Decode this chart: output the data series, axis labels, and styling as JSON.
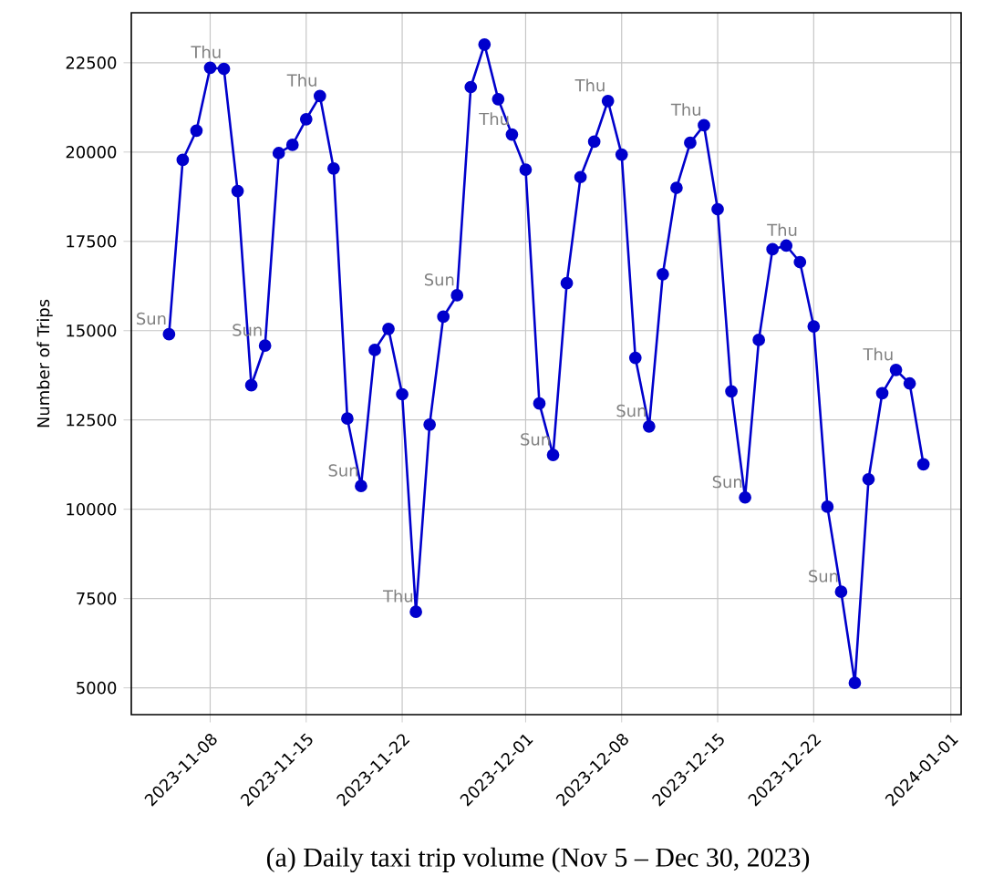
{
  "chart_data": {
    "type": "line",
    "title": "(a) Daily taxi trip volume (Nov 5 – Dec 30, 2023)",
    "ylabel": "Number of Trips",
    "x": [
      "2023-11-05",
      "2023-11-06",
      "2023-11-07",
      "2023-11-08",
      "2023-11-09",
      "2023-11-10",
      "2023-11-11",
      "2023-11-12",
      "2023-11-13",
      "2023-11-14",
      "2023-11-15",
      "2023-11-16",
      "2023-11-17",
      "2023-11-18",
      "2023-11-19",
      "2023-11-20",
      "2023-11-21",
      "2023-11-22",
      "2023-11-23",
      "2023-11-24",
      "2023-11-25",
      "2023-11-26",
      "2023-11-27",
      "2023-11-28",
      "2023-11-29",
      "2023-11-30",
      "2023-12-01",
      "2023-12-02",
      "2023-12-03",
      "2023-12-04",
      "2023-12-05",
      "2023-12-06",
      "2023-12-07",
      "2023-12-08",
      "2023-12-09",
      "2023-12-10",
      "2023-12-11",
      "2023-12-12",
      "2023-12-13",
      "2023-12-14",
      "2023-12-15",
      "2023-12-16",
      "2023-12-17",
      "2023-12-18",
      "2023-12-19",
      "2023-12-20",
      "2023-12-21",
      "2023-12-22",
      "2023-12-23",
      "2023-12-24",
      "2023-12-25",
      "2023-12-26",
      "2023-12-27",
      "2023-12-28",
      "2023-12-29",
      "2023-12-30"
    ],
    "series": [
      {
        "color": "#0000cc",
        "values": [
          14900,
          19780,
          20600,
          22360,
          22330,
          18910,
          13470,
          14580,
          19970,
          20200,
          20920,
          21570,
          19540,
          12540,
          10650,
          14460,
          15050,
          13220,
          7130,
          12370,
          15390,
          15990,
          21820,
          23010,
          21480,
          20490,
          19510,
          12960,
          11520,
          16330,
          19300,
          20290,
          21430,
          19930,
          14240,
          12320,
          16580,
          19000,
          20260,
          20750,
          18400,
          13300,
          10330,
          14740,
          17280,
          17380,
          16920,
          15120,
          10070,
          7690,
          5140,
          10840,
          13250,
          13900,
          13520,
          11260
        ]
      }
    ],
    "xlim": [
      "2023-11-02T06:00",
      "2024-01-01T18:00"
    ],
    "xticks": [
      "2023-11-08",
      "2023-11-15",
      "2023-11-22",
      "2023-12-01",
      "2023-12-08",
      "2023-12-15",
      "2023-12-22",
      "2024-01-01"
    ],
    "ylim": [
      4250,
      23900
    ],
    "yticks": [
      5000,
      7500,
      10000,
      12500,
      15000,
      17500,
      20000,
      22500
    ],
    "grid": true,
    "marker": "circle",
    "line_style": "solid",
    "annotations": [
      {
        "text": "Sun",
        "x": "2023-11-05",
        "y": 14900
      },
      {
        "text": "Thu",
        "x": "2023-11-09",
        "y": 22330
      },
      {
        "text": "Sun",
        "x": "2023-11-12",
        "y": 14580
      },
      {
        "text": "Thu",
        "x": "2023-11-16",
        "y": 21570
      },
      {
        "text": "Sun",
        "x": "2023-11-19",
        "y": 10650
      },
      {
        "text": "Thu",
        "x": "2023-11-23",
        "y": 7130
      },
      {
        "text": "Sun",
        "x": "2023-11-26",
        "y": 15990
      },
      {
        "text": "Thu",
        "x": "2023-11-30",
        "y": 20490
      },
      {
        "text": "Sun",
        "x": "2023-12-03",
        "y": 11520
      },
      {
        "text": "Thu",
        "x": "2023-12-07",
        "y": 21430
      },
      {
        "text": "Sun",
        "x": "2023-12-10",
        "y": 12320
      },
      {
        "text": "Thu",
        "x": "2023-12-14",
        "y": 20750
      },
      {
        "text": "Sun",
        "x": "2023-12-17",
        "y": 10330
      },
      {
        "text": "Thu",
        "x": "2023-12-21",
        "y": 16920
      },
      {
        "text": "Sun",
        "x": "2023-12-24",
        "y": 7690
      },
      {
        "text": "Thu",
        "x": "2023-12-28",
        "y": 13900
      }
    ]
  }
}
